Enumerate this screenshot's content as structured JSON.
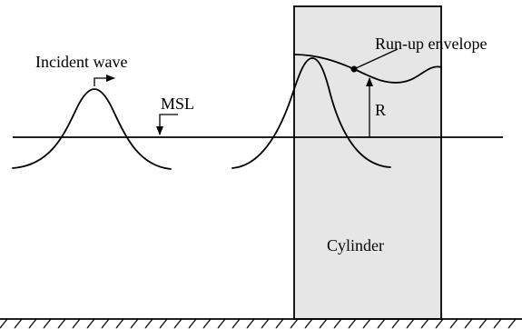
{
  "labels": {
    "incident_wave": "Incident wave",
    "msl": "MSL",
    "runup_envelope": "Run-up envelope",
    "runup_height": "R",
    "cylinder": "Cylinder"
  },
  "colors": {
    "cylinder_fill": "#e6e6e6",
    "ink": "#000000"
  }
}
